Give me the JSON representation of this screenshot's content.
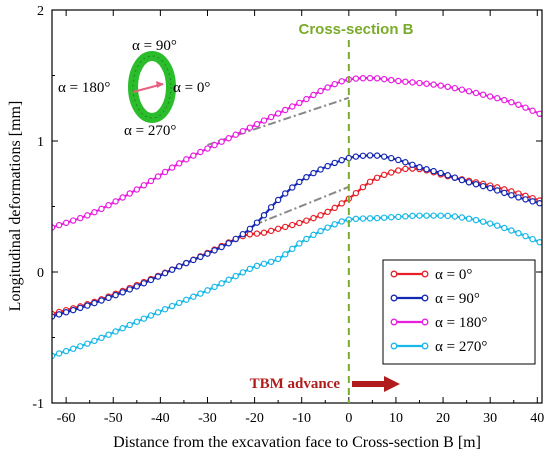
{
  "chart_data": {
    "type": "line",
    "xlabel": "Distance from the excavation face to Cross-section B [m]",
    "ylabel": "Longitudinal deformations [mm]",
    "xlim": [
      -63,
      41
    ],
    "ylim": [
      -1,
      2
    ],
    "xticks": [
      -60,
      -50,
      -40,
      -30,
      -20,
      -10,
      0,
      10,
      20,
      30,
      40
    ],
    "yticks": [
      -1,
      0,
      1,
      2
    ],
    "x_tick_labels": [
      "-60",
      "-50",
      "-40",
      "-30",
      "-20",
      "-10",
      "0",
      "10",
      "20",
      "30",
      "40"
    ],
    "y_tick_labels": [
      "-1",
      "0",
      "1",
      "2"
    ],
    "grid": false,
    "legend_position": "bottom-right",
    "series": [
      {
        "name": "α = 0°",
        "color": "#e8202a",
        "points": [
          [
            -63,
            -0.32
          ],
          [
            -55,
            -0.24
          ],
          [
            -45,
            -0.1
          ],
          [
            -35,
            0.06
          ],
          [
            -28,
            0.18
          ],
          [
            -22,
            0.28
          ],
          [
            -18,
            0.3
          ],
          [
            -15,
            0.33
          ],
          [
            -10,
            0.38
          ],
          [
            -5,
            0.45
          ],
          [
            0,
            0.56
          ],
          [
            5,
            0.7
          ],
          [
            10,
            0.77
          ],
          [
            13,
            0.79
          ],
          [
            16,
            0.78
          ],
          [
            20,
            0.74
          ],
          [
            25,
            0.7
          ],
          [
            30,
            0.66
          ],
          [
            35,
            0.61
          ],
          [
            41,
            0.54
          ]
        ]
      },
      {
        "name": "α = 90°",
        "color": "#1428b4",
        "points": [
          [
            -63,
            -0.34
          ],
          [
            -55,
            -0.25
          ],
          [
            -45,
            -0.11
          ],
          [
            -35,
            0.06
          ],
          [
            -30,
            0.14
          ],
          [
            -25,
            0.23
          ],
          [
            -20,
            0.36
          ],
          [
            -15,
            0.55
          ],
          [
            -10,
            0.7
          ],
          [
            -5,
            0.8
          ],
          [
            0,
            0.87
          ],
          [
            5,
            0.89
          ],
          [
            10,
            0.86
          ],
          [
            15,
            0.8
          ],
          [
            20,
            0.75
          ],
          [
            25,
            0.69
          ],
          [
            30,
            0.64
          ],
          [
            35,
            0.58
          ],
          [
            41,
            0.52
          ]
        ]
      },
      {
        "name": "α = 180°",
        "color": "#e81ee0",
        "points": [
          [
            -63,
            0.34
          ],
          [
            -55,
            0.44
          ],
          [
            -45,
            0.63
          ],
          [
            -35,
            0.85
          ],
          [
            -25,
            1.03
          ],
          [
            -15,
            1.21
          ],
          [
            -10,
            1.3
          ],
          [
            -5,
            1.4
          ],
          [
            0,
            1.47
          ],
          [
            5,
            1.48
          ],
          [
            10,
            1.46
          ],
          [
            20,
            1.42
          ],
          [
            30,
            1.34
          ],
          [
            35,
            1.29
          ],
          [
            41,
            1.2
          ]
        ]
      },
      {
        "name": "α = 270°",
        "color": "#18b8e8",
        "points": [
          [
            -63,
            -0.64
          ],
          [
            -55,
            -0.54
          ],
          [
            -45,
            -0.38
          ],
          [
            -35,
            -0.22
          ],
          [
            -30,
            -0.14
          ],
          [
            -25,
            -0.05
          ],
          [
            -20,
            0.04
          ],
          [
            -15,
            0.1
          ],
          [
            -10,
            0.23
          ],
          [
            -5,
            0.33
          ],
          [
            0,
            0.4
          ],
          [
            5,
            0.41
          ],
          [
            10,
            0.42
          ],
          [
            15,
            0.43
          ],
          [
            20,
            0.43
          ],
          [
            25,
            0.41
          ],
          [
            30,
            0.37
          ],
          [
            35,
            0.31
          ],
          [
            41,
            0.22
          ]
        ]
      }
    ],
    "reference_lines": [
      {
        "style": "dash-dot",
        "color": "#888888",
        "points": [
          [
            -30,
            0.97
          ],
          [
            0,
            1.33
          ]
        ]
      },
      {
        "style": "dash-dot",
        "color": "#888888",
        "points": [
          [
            -20,
            0.36
          ],
          [
            0,
            0.65
          ]
        ]
      }
    ],
    "vertical_marker": {
      "x": 0,
      "label": "Cross-section B",
      "color": "#7aab2a"
    },
    "annotations": {
      "tbm_label": "TBM advance",
      "ring_labels": {
        "a90": "α = 90°",
        "a180": "α = 180°",
        "a0": "α = 0°",
        "a270": "α = 270°"
      }
    }
  }
}
